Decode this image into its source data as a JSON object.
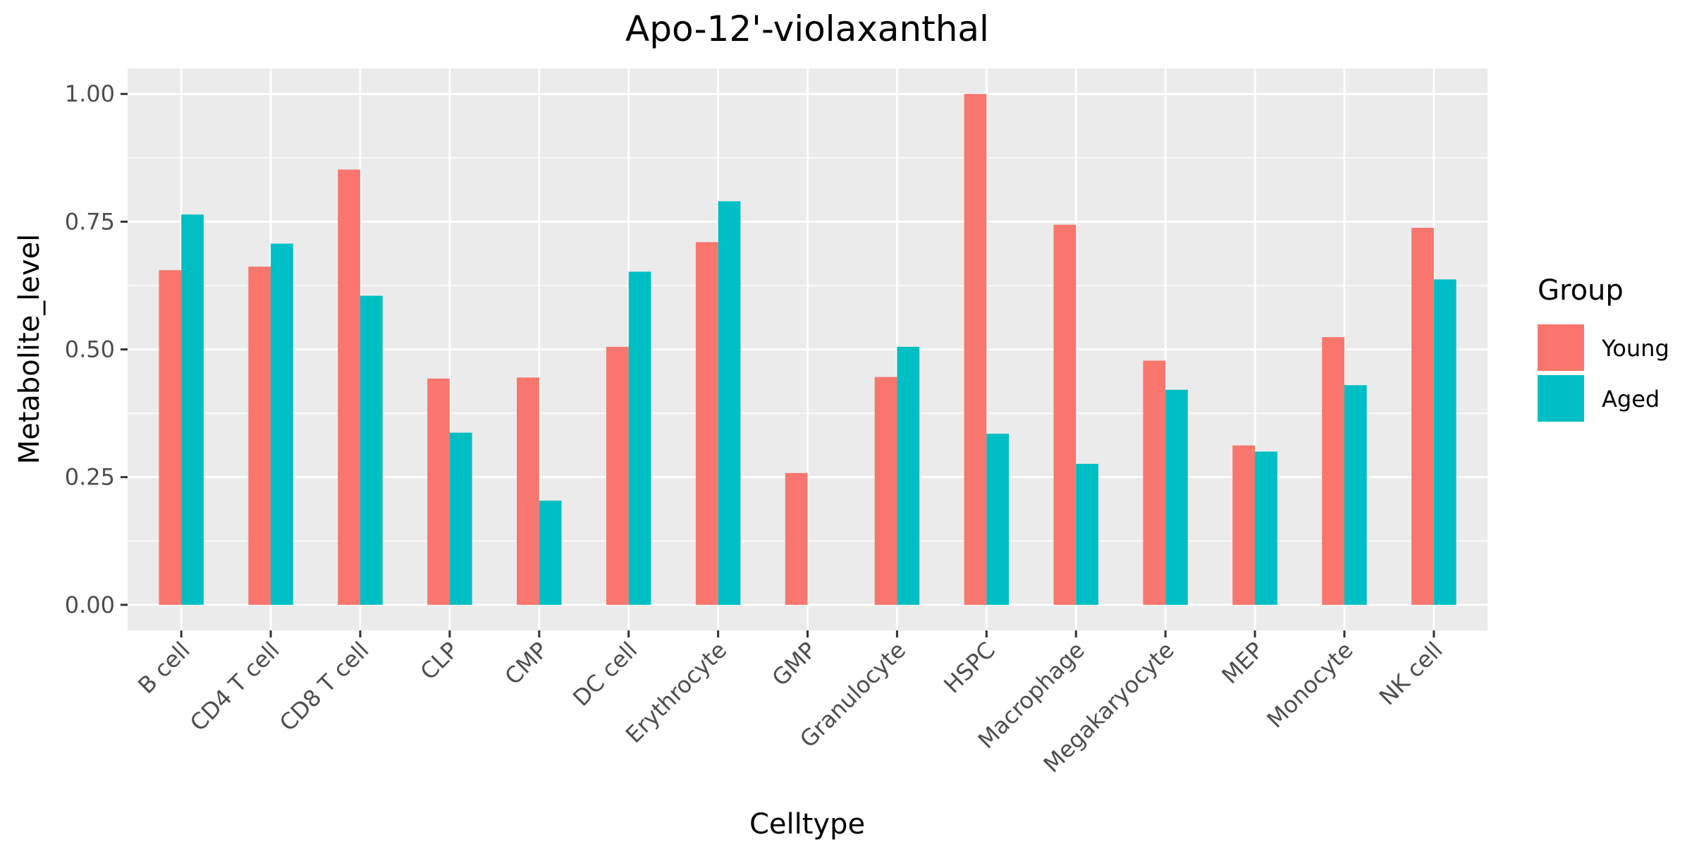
{
  "chart_data": {
    "type": "bar",
    "title": "Apo-12'-violaxanthal",
    "xlabel": "Celltype",
    "ylabel": "Metabolite_level",
    "ylim": [
      -0.05,
      1.05
    ],
    "yticks": [
      0.0,
      0.25,
      0.5,
      0.75,
      1.0
    ],
    "ytick_labels": [
      "0.00",
      "0.25",
      "0.50",
      "0.75",
      "1.00"
    ],
    "grid": true,
    "legend": {
      "title": "Group",
      "position": "right"
    },
    "categories": [
      "B cell",
      "CD4 T cell",
      "CD8 T cell",
      "CLP",
      "CMP",
      "DC cell",
      "Erythrocyte",
      "GMP",
      "Granulocyte",
      "HSPC",
      "Macrophage",
      "Megakaryocyte",
      "MEP",
      "Monocyte",
      "NK cell"
    ],
    "series": [
      {
        "name": "Young",
        "color": "#F8766D",
        "values": [
          0.655,
          0.662,
          0.852,
          0.443,
          0.445,
          0.505,
          0.71,
          0.258,
          0.446,
          1.0,
          0.744,
          0.478,
          0.312,
          0.524,
          0.738
        ]
      },
      {
        "name": "Aged",
        "color": "#00BFC4",
        "values": [
          0.764,
          0.707,
          0.605,
          0.337,
          0.204,
          0.652,
          0.79,
          0.0,
          0.505,
          0.335,
          0.276,
          0.421,
          0.3,
          0.43,
          0.637
        ]
      }
    ],
    "colors": {
      "panel_background": "#EBEBEB",
      "grid": "#FFFFFF"
    }
  }
}
